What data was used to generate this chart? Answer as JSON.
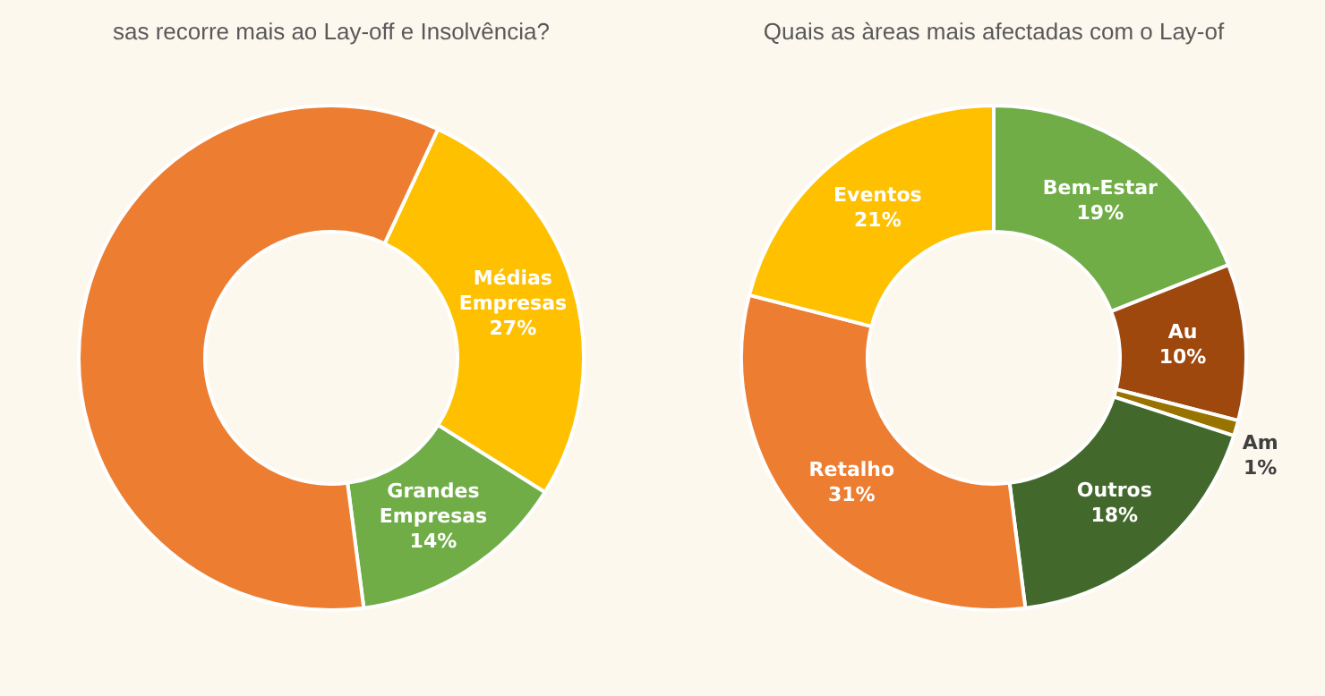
{
  "chart_data": [
    {
      "type": "donut",
      "title": "sas recorre mais ao Lay-off e Insolvência?",
      "categories": [
        "Médias Empresas",
        "Grandes Empresas",
        null
      ],
      "values": [
        27,
        14,
        59
      ],
      "colors": [
        "#ffc000",
        "#70ad47",
        "#ed7d31"
      ],
      "value_labels": [
        "27%",
        "14%",
        null
      ],
      "legend": false
    },
    {
      "type": "donut",
      "title": "Quais as àreas mais afectadas com o Lay-of",
      "categories": [
        "Bem-Estar",
        "Au",
        "Am",
        "Outros",
        "Retalho",
        "Eventos"
      ],
      "values": [
        19,
        10,
        1,
        18,
        31,
        21
      ],
      "colors": [
        "#70ad47",
        "#9e480e",
        "#997300",
        "#43682b",
        "#ed7d31",
        "#ffc000"
      ],
      "value_labels": [
        "19%",
        "10%",
        "1%",
        "18%",
        "31%",
        "21%"
      ],
      "legend": false
    }
  ]
}
